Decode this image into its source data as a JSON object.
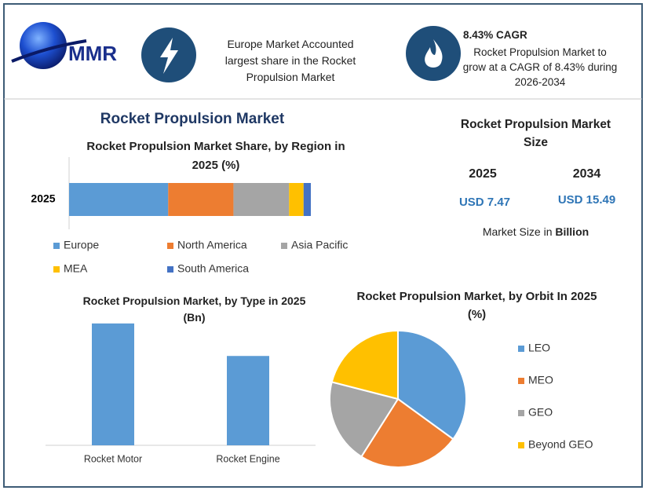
{
  "header": {
    "logo": "MMR",
    "info_1": "Europe Market Accounted largest share in the Rocket Propulsion Market",
    "info_2_title": "8.43% CAGR",
    "info_2_text": "Rocket Propulsion Market to grow at a CAGR of 8.43% during 2026-2034"
  },
  "main_title": "Rocket Propulsion Market",
  "market_size": {
    "title": "Rocket Propulsion Market Size",
    "years": [
      "2025",
      "2034"
    ],
    "values": [
      "USD 7.47",
      "USD 15.49"
    ],
    "note": "Market Size in",
    "note_bold": "Billion"
  },
  "chart_data": [
    {
      "type": "stacked-bar",
      "title": "Rocket Propulsion Market Share, by Region in 2025 (%)",
      "categories": [
        "2025"
      ],
      "xlim": [
        0,
        100
      ],
      "series": [
        {
          "name": "Europe",
          "color": "#5b9bd5",
          "values": [
            41
          ]
        },
        {
          "name": "North America",
          "color": "#ed7d31",
          "values": [
            27
          ]
        },
        {
          "name": "Asia Pacific",
          "color": "#a5a5a5",
          "values": [
            23
          ]
        },
        {
          "name": "MEA",
          "color": "#ffc000",
          "values": [
            6
          ]
        },
        {
          "name": "South America",
          "color": "#4472c4",
          "values": [
            3
          ]
        }
      ]
    },
    {
      "type": "bar",
      "title": "Rocket Propulsion Market, by Type in 2025 (Bn)",
      "categories": [
        "Rocket Motor",
        "Rocket Engine"
      ],
      "values": [
        4.31,
        3.16
      ],
      "color": "#5b9bd5",
      "ylim": [
        0,
        4.5
      ]
    },
    {
      "type": "pie",
      "title": "Rocket Propulsion Market, by Orbit In 2025 (%)",
      "categories": [
        "LEO",
        "MEO",
        "GEO",
        "Beyond GEO"
      ],
      "values": [
        35,
        24,
        20,
        21
      ],
      "colors": [
        "#5b9bd5",
        "#ed7d31",
        "#a5a5a5",
        "#ffc000"
      ]
    }
  ]
}
